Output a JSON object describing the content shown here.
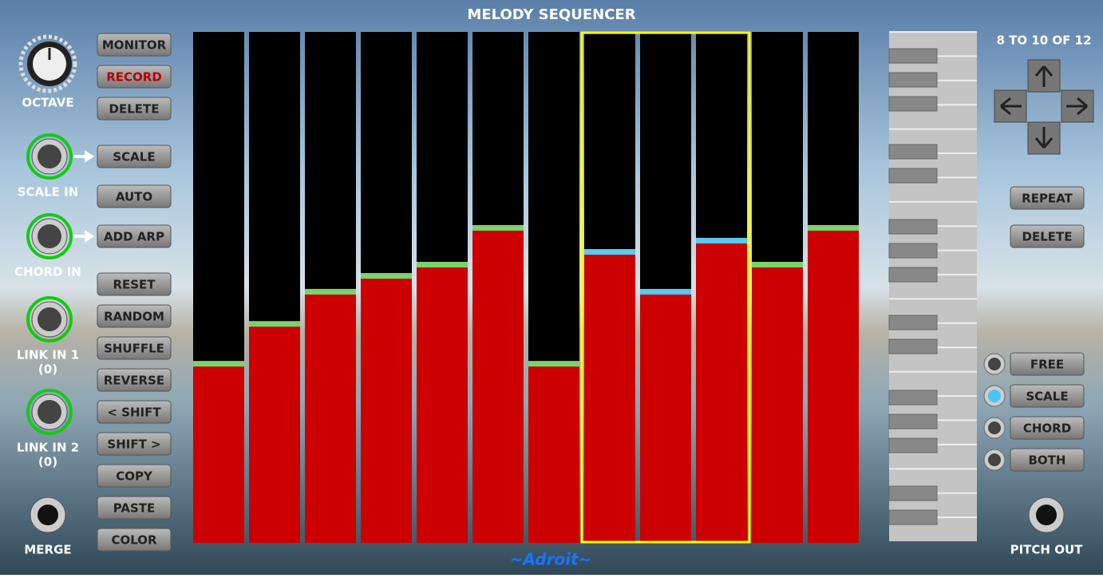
{
  "title": "MELODY SEQUENCER",
  "left": {
    "octave": "OCTAVE",
    "inputs": [
      {
        "label": "SCALE IN"
      },
      {
        "label": "CHORD IN"
      },
      {
        "label": "LINK IN 1",
        "sub": "(0)"
      },
      {
        "label": "LINK IN 2",
        "sub": "(0)"
      }
    ],
    "merge": "MERGE"
  },
  "buttons": [
    "MONITOR",
    "RECORD",
    "DELETE",
    "SCALE",
    "AUTO",
    "ADD ARP",
    "RESET",
    "RANDOM",
    "SHUFFLE",
    "REVERSE",
    "< SHIFT",
    "SHIFT >",
    "COPY",
    "PASTE",
    "COLOR"
  ],
  "sequencer": {
    "steps": [
      0.356,
      0.434,
      0.497,
      0.528,
      0.55,
      0.622,
      0.356,
      0.575,
      0.497,
      0.597,
      0.55,
      0.622
    ]
  },
  "right": {
    "range": "8 TO 10 OF 12",
    "buttons": [
      "REPEAT",
      "DELETE"
    ],
    "modes": [
      "FREE",
      "SCALE",
      "CHORD",
      "BOTH"
    ],
    "output": "PITCH OUT"
  },
  "brand": "~Adroit~"
}
